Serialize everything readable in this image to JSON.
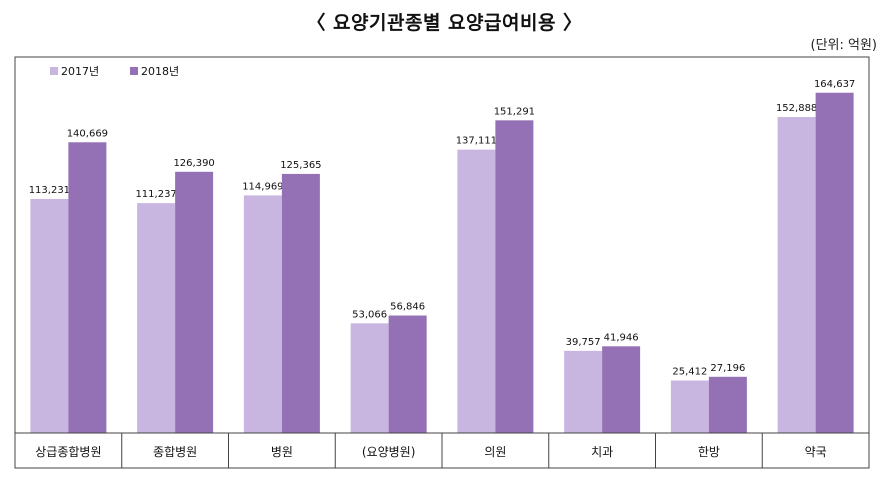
{
  "header": {
    "title": "〈 요양기관종별 요양급여비용 〉",
    "unit": "(단위: 억원)"
  },
  "colors": {
    "series_2017": "#c9b6e0",
    "series_2018": "#9470b4"
  },
  "chart_data": {
    "type": "bar",
    "categories": [
      "상급종합병원",
      "종합병원",
      "병원",
      "(요양병원)",
      "의원",
      "치과",
      "한방",
      "약국"
    ],
    "series": [
      {
        "name": "2017년",
        "values": [
          113231,
          111237,
          114969,
          53066,
          137111,
          39757,
          25412,
          152888
        ]
      },
      {
        "name": "2018년",
        "values": [
          140669,
          126390,
          125365,
          56846,
          151291,
          41946,
          27196,
          164637
        ]
      }
    ],
    "value_labels": [
      [
        "113,231",
        "111,237",
        "114,969",
        "53,066",
        "137,111",
        "39,757",
        "25,412",
        "152,888"
      ],
      [
        "140,669",
        "126,390",
        "125,365",
        "56,846",
        "151,291",
        "41,946",
        "27,196",
        "164,637"
      ]
    ],
    "ylim": [
      0,
      180000
    ],
    "legend_position": "top-left",
    "grid": false
  }
}
